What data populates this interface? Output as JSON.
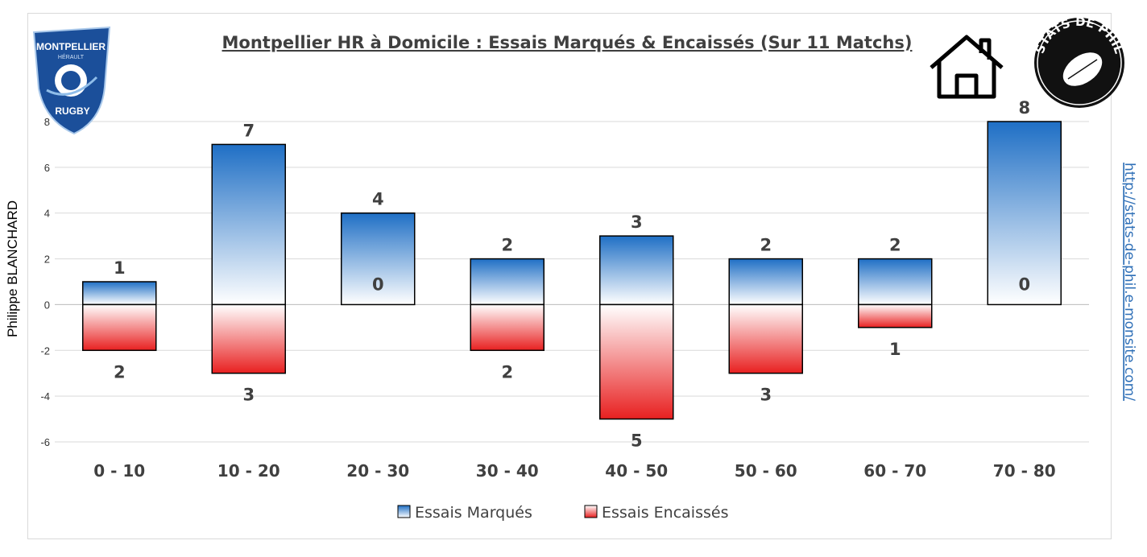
{
  "chart_data": {
    "type": "bar",
    "title": "Montpellier HR à Domicile : Essais Marqués & Encaissés (Sur 11 Matchs)",
    "categories": [
      "0 - 10",
      "10 - 20",
      "20 - 30",
      "30 - 40",
      "40 - 50",
      "50 - 60",
      "60 - 70",
      "70 - 80"
    ],
    "series": [
      {
        "name": "Essais Marqués",
        "values": [
          1,
          7,
          4,
          2,
          3,
          2,
          2,
          8
        ],
        "color": "#1f6fc5"
      },
      {
        "name": "Essais Encaissés",
        "values": [
          -2,
          -3,
          0,
          -2,
          -5,
          -3,
          -1,
          0
        ],
        "color": "#e82020"
      }
    ],
    "data_labels": {
      "scored": [
        "1",
        "7",
        "4",
        "2",
        "3",
        "2",
        "2",
        "8"
      ],
      "conceded": [
        "2",
        "3",
        "0",
        "2",
        "5",
        "3",
        "1",
        "0"
      ]
    },
    "yticks": [
      "8",
      "6",
      "4",
      "2",
      "0",
      "-2",
      "-4",
      "-6"
    ],
    "ylim": [
      -6,
      8
    ],
    "grid": true,
    "legend_position": "bottom",
    "ylabel": "Philippe BLANCHARD",
    "side_text": "http://stats-de-phil.e-monsite.com/"
  },
  "logos": {
    "club": "MONTPELLIER HÉRAULT RUGBY",
    "club_top": "MONTPELLIER",
    "club_mid": "HÉRAULT",
    "club_bottom": "RUGBY",
    "site": "STATS DE PHIL",
    "home_icon": "house-icon"
  }
}
